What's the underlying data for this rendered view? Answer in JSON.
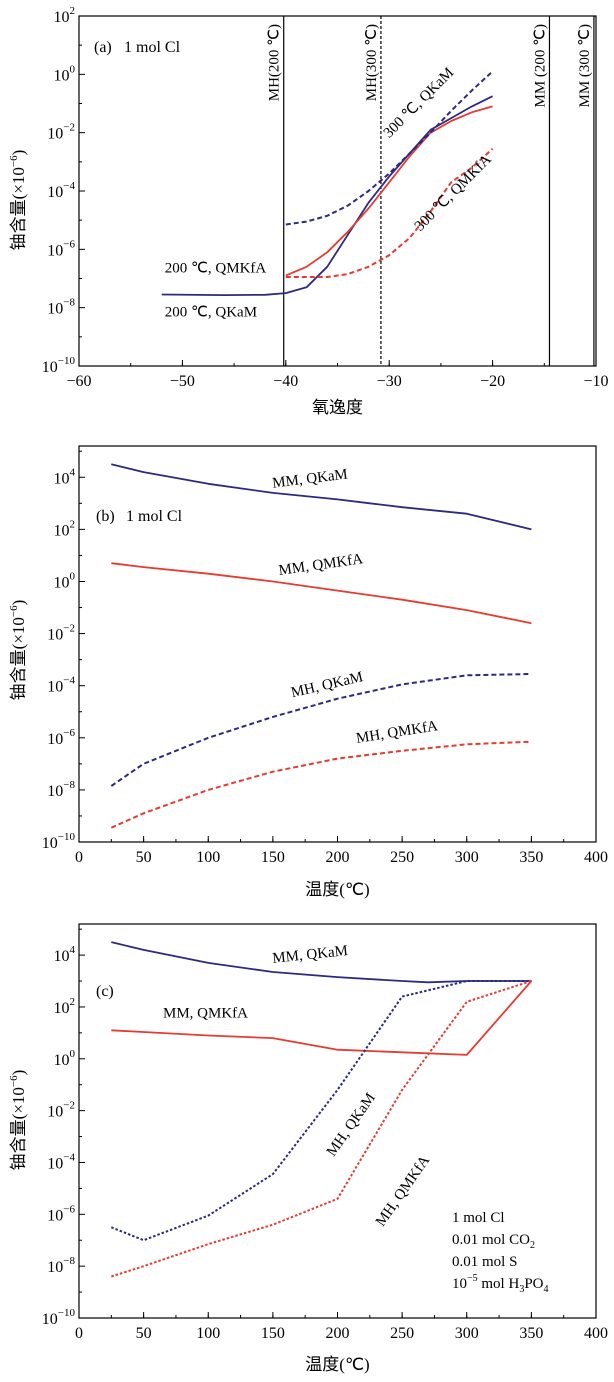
{
  "chart_data": [
    {
      "type": "line",
      "panel_label": "(a)",
      "condition_text": "1 mol Cl",
      "xlabel": "氧逸度",
      "ylabel_main": "铀含量",
      "ylabel_unit": "(×10",
      "ylabel_exp": "−6",
      "ylabel_close": ")",
      "xlim": [
        -60,
        -10
      ],
      "ylim_log10": [
        -10,
        2
      ],
      "yscale": "log",
      "xticks": [
        -60,
        -50,
        -40,
        -30,
        -20,
        -10
      ],
      "xtick_labels": [
        "−60",
        "−50",
        "−40",
        "−30",
        "−20",
        "−10"
      ],
      "yticks_log10": [
        -10,
        -8,
        -6,
        -4,
        -2,
        0,
        2
      ],
      "ytick_labels": [
        {
          "base": "10",
          "exp": "−10"
        },
        {
          "base": "10",
          "exp": "−8"
        },
        {
          "base": "10",
          "exp": "−6"
        },
        {
          "base": "10",
          "exp": "−4"
        },
        {
          "base": "10",
          "exp": "−2"
        },
        {
          "base": "10",
          "exp": "0"
        },
        {
          "base": "10",
          "exp": "2"
        }
      ],
      "buffers": [
        {
          "label": "MH(200 ℃)",
          "x": -40.2,
          "style": "solid"
        },
        {
          "label": "MH(300 ℃)",
          "x": -30.8,
          "style": "dashed"
        },
        {
          "label": "MM (200 ℃)",
          "x": -14.5,
          "style": "solid"
        },
        {
          "label": "MM (300 ℃)",
          "x": -10.2,
          "style": "solid"
        }
      ],
      "series": [
        {
          "color": "#2a2a86",
          "dash": false,
          "x": [
            -52,
            -46,
            -42,
            -40,
            -38,
            -36,
            -34,
            -32,
            -30,
            -28,
            -26,
            -24,
            -22,
            -20
          ],
          "log_y": [
            -7.55,
            -7.57,
            -7.56,
            -7.5,
            -7.3,
            -6.6,
            -5.5,
            -4.4,
            -3.5,
            -2.7,
            -1.9,
            -1.5,
            -1.1,
            -0.75
          ]
        },
        {
          "color": "#e83a2e",
          "dash": false,
          "x": [
            -40,
            -38,
            -36,
            -34,
            -32,
            -30,
            -28,
            -26,
            -24,
            -22,
            -20
          ],
          "log_y": [
            -6.9,
            -6.6,
            -6.1,
            -5.4,
            -4.6,
            -3.7,
            -2.8,
            -2.0,
            -1.6,
            -1.3,
            -1.1
          ]
        },
        {
          "color": "#2a2a86",
          "dash": true,
          "x": [
            -40,
            -38,
            -36,
            -34,
            -32,
            -30,
            -28,
            -26,
            -24,
            -22,
            -20
          ],
          "log_y": [
            -5.15,
            -5.05,
            -4.85,
            -4.5,
            -4.0,
            -3.4,
            -2.7,
            -2.0,
            -1.25,
            -0.55,
            0.1
          ]
        },
        {
          "color": "#e83a2e",
          "dash": true,
          "x": [
            -40,
            -36,
            -34,
            -32,
            -30,
            -28,
            -26,
            -24,
            -22,
            -20
          ],
          "log_y": [
            -6.95,
            -6.95,
            -6.85,
            -6.6,
            -6.2,
            -5.6,
            -4.7,
            -3.7,
            -3.2,
            -2.55
          ]
        }
      ],
      "annotations": [
        {
          "text": "300 ℃, QKaM",
          "x": -30.0,
          "log_y": -2.2,
          "rotate": -45
        },
        {
          "text": "300 ℃, QMKfA",
          "x": -27.0,
          "log_y": -5.4,
          "rotate": -45
        },
        {
          "text": "200 ℃, QMKfA",
          "x": -51.7,
          "log_y": -6.8,
          "rotate": 0
        },
        {
          "text": "200 ℃, QKaM",
          "x": -51.7,
          "log_y": -8.3,
          "rotate": 0
        }
      ]
    },
    {
      "type": "line",
      "panel_label": "(b)",
      "condition_text": "1 mol Cl",
      "xlabel": "温度",
      "xlabel_unit": "(℃)",
      "ylabel_main": "铀含量",
      "ylabel_unit": "(×10",
      "ylabel_exp": "−6",
      "ylabel_close": ")",
      "xlim": [
        0,
        400
      ],
      "ylim_log10": [
        -10,
        5.2
      ],
      "yscale": "log",
      "xticks": [
        0,
        50,
        100,
        150,
        200,
        250,
        300,
        350,
        400
      ],
      "xtick_labels": [
        "0",
        "50",
        "100",
        "150",
        "200",
        "250",
        "300",
        "350",
        "400"
      ],
      "yticks_log10": [
        -10,
        -8,
        -6,
        -4,
        -2,
        0,
        2,
        4
      ],
      "ytick_labels": [
        {
          "base": "10",
          "exp": "−10"
        },
        {
          "base": "10",
          "exp": "−8"
        },
        {
          "base": "10",
          "exp": "−6"
        },
        {
          "base": "10",
          "exp": "−4"
        },
        {
          "base": "10",
          "exp": "−2"
        },
        {
          "base": "10",
          "exp": "0"
        },
        {
          "base": "10",
          "exp": "2"
        },
        {
          "base": "10",
          "exp": "4"
        }
      ],
      "series": [
        {
          "color": "#2a2a86",
          "dash": false,
          "x": [
            25,
            50,
            100,
            150,
            200,
            225,
            250,
            300,
            350
          ],
          "log_y": [
            4.5,
            4.2,
            3.75,
            3.4,
            3.15,
            3.0,
            2.85,
            2.6,
            2.0
          ]
        },
        {
          "color": "#e83a2e",
          "dash": false,
          "x": [
            25,
            50,
            100,
            150,
            200,
            250,
            300,
            350
          ],
          "log_y": [
            0.7,
            0.55,
            0.3,
            0.0,
            -0.35,
            -0.7,
            -1.1,
            -1.6
          ]
        },
        {
          "color": "#2a2a86",
          "dash": true,
          "x": [
            25,
            50,
            100,
            150,
            200,
            250,
            300,
            350
          ],
          "log_y": [
            -7.85,
            -7.0,
            -6.0,
            -5.2,
            -4.5,
            -3.95,
            -3.6,
            -3.55
          ]
        },
        {
          "color": "#e83a2e",
          "dash": true,
          "x": [
            25,
            50,
            100,
            150,
            200,
            250,
            300,
            350
          ],
          "log_y": [
            -9.45,
            -8.9,
            -8.0,
            -7.3,
            -6.8,
            -6.5,
            -6.25,
            -6.15
          ]
        }
      ],
      "annotations": [
        {
          "text": "MM, QKaM",
          "x": 150,
          "log_y": 3.6,
          "rotate": -7
        },
        {
          "text": "MM, QMKfA",
          "x": 155,
          "log_y": 0.25,
          "rotate": -8
        },
        {
          "text": "MH, QKaM",
          "x": 165,
          "log_y": -4.45,
          "rotate": -13
        },
        {
          "text": "MH, QMKfA",
          "x": 215,
          "log_y": -6.2,
          "rotate": -9
        }
      ]
    },
    {
      "type": "line",
      "panel_label": "(c)",
      "xlabel": "温度",
      "xlabel_unit": "(℃)",
      "ylabel_main": "铀含量",
      "ylabel_unit": "(×10",
      "ylabel_exp": "−6",
      "ylabel_close": ")",
      "xlim": [
        0,
        400
      ],
      "ylim_log10": [
        -10,
        5.2
      ],
      "yscale": "log",
      "xticks": [
        0,
        50,
        100,
        150,
        200,
        250,
        300,
        350,
        400
      ],
      "xtick_labels": [
        "0",
        "50",
        "100",
        "150",
        "200",
        "250",
        "300",
        "350",
        "400"
      ],
      "yticks_log10": [
        -10,
        -8,
        -6,
        -4,
        -2,
        0,
        2,
        4
      ],
      "ytick_labels": [
        {
          "base": "10",
          "exp": "−10"
        },
        {
          "base": "10",
          "exp": "−8"
        },
        {
          "base": "10",
          "exp": "−6"
        },
        {
          "base": "10",
          "exp": "−4"
        },
        {
          "base": "10",
          "exp": "−2"
        },
        {
          "base": "10",
          "exp": "0"
        },
        {
          "base": "10",
          "exp": "2"
        },
        {
          "base": "10",
          "exp": "4"
        }
      ],
      "conditions": [
        {
          "pre": "1 mol Cl",
          "sup": "",
          "sub": "",
          "post": ""
        },
        {
          "pre": "0.01 mol CO",
          "sup": "",
          "sub": "2",
          "post": ""
        },
        {
          "pre": "0.01 mol S",
          "sup": "",
          "sub": "",
          "post": ""
        },
        {
          "pre": "10",
          "sup": "−5",
          "sub": "",
          "post": " mol H",
          "sub2": "3",
          "post2": "PO",
          "sub3": "4"
        }
      ],
      "series": [
        {
          "color": "#2a2a86",
          "dash": false,
          "x": [
            25,
            50,
            100,
            150,
            200,
            250,
            270,
            300,
            350
          ],
          "log_y": [
            4.5,
            4.2,
            3.7,
            3.35,
            3.15,
            3.0,
            2.95,
            3.0,
            3.0
          ]
        },
        {
          "color": "#e83a2e",
          "dash": false,
          "x": [
            25,
            100,
            150,
            200,
            250,
            300,
            350
          ],
          "log_y": [
            1.1,
            0.9,
            0.8,
            0.35,
            0.25,
            0.15,
            3.0
          ]
        },
        {
          "color": "#2a2a86",
          "dash": true,
          "x": [
            25,
            50,
            100,
            150,
            200,
            250,
            300,
            350
          ],
          "log_y": [
            -6.5,
            -7.0,
            -6.05,
            -4.45,
            -1.2,
            2.4,
            3.0,
            3.0
          ]
        },
        {
          "color": "#e83a2e",
          "dash": true,
          "x": [
            25,
            50,
            100,
            150,
            200,
            250,
            300,
            350
          ],
          "log_y": [
            -8.4,
            -8.0,
            -7.15,
            -6.4,
            -5.4,
            -1.2,
            2.2,
            3.0
          ]
        }
      ],
      "annotations": [
        {
          "text": "MM, QKaM",
          "x": 150,
          "log_y": 3.7,
          "rotate": -6
        },
        {
          "text": "MM, QMKfA",
          "x": 65,
          "log_y": 1.6,
          "rotate": 0
        },
        {
          "text": "MH, QKaM",
          "x": 197,
          "log_y": -3.8,
          "rotate": -55
        },
        {
          "text": "MH, QMKfA",
          "x": 235,
          "log_y": -6.5,
          "rotate": -55
        }
      ]
    }
  ]
}
